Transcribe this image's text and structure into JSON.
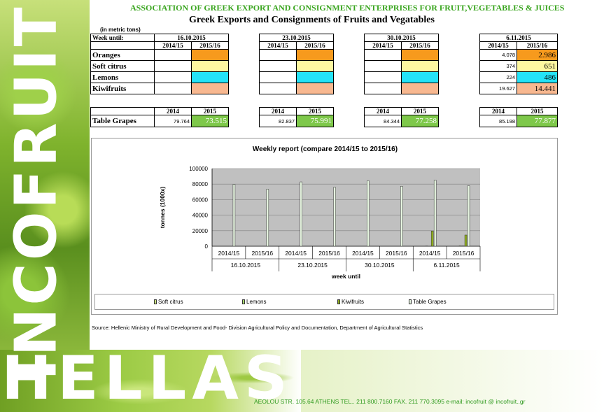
{
  "header": {
    "association": "ASSOCIATION OF GREEK EXPORT AND CONSIGNMENT ENTERPRISES FOR FRUIT,VEGETABLES & JUICES",
    "title": "Greek Exports and Consignments of Fruits and Vegatables"
  },
  "brand": {
    "vertical": "INCOFRUIT",
    "bottom": "HELLAS"
  },
  "table": {
    "units": "(in metric tons)",
    "week_label": "Week until:",
    "weeks": [
      "16.10.2015",
      "23.10.2015",
      "30.10.2015",
      "6.11.2015"
    ],
    "seasons": [
      "2014/15",
      "2015/16"
    ],
    "products": [
      {
        "name": "Oranges",
        "color": "#f79a1d",
        "v2014_15": "4.078",
        "v2015_16": "2.986"
      },
      {
        "name": "Soft citrus",
        "color": "#fdf7a0",
        "v2014_15": "374",
        "v2015_16": "651"
      },
      {
        "name": "Lemons",
        "color": "#24e3f7",
        "v2014_15": "224",
        "v2015_16": "486"
      },
      {
        "name": "Kiwifruits",
        "color": "#f8b890",
        "v2014_15": "19.627",
        "v2015_16": "14.441"
      }
    ],
    "years": [
      "2014",
      "2015"
    ],
    "grapes": {
      "name": "Table Grapes",
      "values": [
        [
          "79.764",
          "73.515"
        ],
        [
          "82.837",
          "75.991"
        ],
        [
          "84.344",
          "77.258"
        ],
        [
          "85.198",
          "77.877"
        ]
      ]
    }
  },
  "chart_data": {
    "type": "bar",
    "title": "Weekly report (compare 2014/15 to 2015/16)",
    "xlabel": "week until",
    "ylabel": "tonnes (1000x)",
    "ylim": [
      0,
      100000
    ],
    "yticks": [
      0,
      20000,
      40000,
      60000,
      80000,
      100000
    ],
    "groups": [
      "16.10.2015",
      "23.10.2015",
      "30.10.2015",
      "6.11.2015"
    ],
    "categories": [
      "2014/15",
      "2015/16",
      "2014/15",
      "2015/16",
      "2014/15",
      "2015/16",
      "2014/15",
      "2015/16"
    ],
    "series": [
      {
        "name": "Soft citrus",
        "color": "#c8e07a",
        "values": [
          0,
          0,
          0,
          0,
          0,
          0,
          374,
          651
        ]
      },
      {
        "name": "Lemons",
        "color": "#a6d86a",
        "values": [
          0,
          0,
          0,
          0,
          0,
          0,
          224,
          486
        ]
      },
      {
        "name": "Kiwifruits",
        "color": "#8fae1e",
        "values": [
          0,
          0,
          0,
          0,
          0,
          0,
          19627,
          14441
        ]
      },
      {
        "name": "Table Grapes",
        "color": "#e6f5e0",
        "values": [
          79764,
          73515,
          82837,
          75991,
          84344,
          77258,
          85198,
          77877
        ]
      }
    ],
    "grid": true,
    "legend": "bottom"
  },
  "footer": {
    "source": "Source: Hellenic Ministry of Rural Development and Food- Division Agricultural Policy and Documentation, Department of Agricultural Statistics",
    "address": "AEOLOU STR. 105.64 ATHENS  TEL..  211 800.7160   FAX.   211 770.3095 e-mail: incofruit @ incofruit..gr"
  }
}
